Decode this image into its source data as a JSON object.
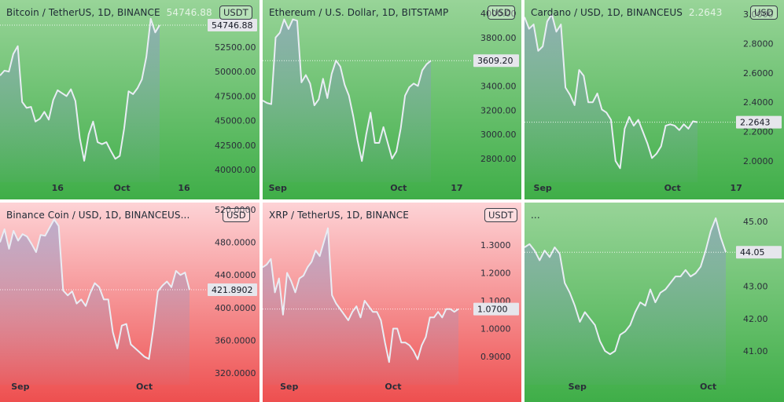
{
  "colors": {
    "green_top": "#98d498",
    "green_bottom": "#3fae48",
    "red_top": "#fdd3d6",
    "red_bottom": "#ee4f4f",
    "line": "#e9edf4",
    "area": "#8a96c8",
    "price_tag_bg": "#e6e6ec"
  },
  "chart_data": [
    {
      "type": "area",
      "title": "Bitcoin / TetherUS, 1D, BINANCE",
      "title_value": "54746.88",
      "unit": "USDT",
      "theme": "green",
      "y_ticks": [
        "52500.00",
        "50000.00",
        "47500.00",
        "45000.00",
        "42500.00",
        "40000.00"
      ],
      "y_tick_values": [
        52500,
        50000,
        47500,
        45000,
        42500,
        40000
      ],
      "x_ticks": [
        "16",
        "Oct",
        "16"
      ],
      "x_tick_index": [
        13.0,
        27.5,
        41.5
      ],
      "last_price": "54746.88",
      "last_price_value": 54746.88,
      "values": [
        49600,
        50100,
        50000,
        51800,
        52600,
        46900,
        46300,
        46400,
        44900,
        45200,
        45900,
        45100,
        47100,
        48100,
        47800,
        47500,
        48200,
        47000,
        43200,
        40900,
        43600,
        44900,
        42800,
        42600,
        42800,
        41900,
        41100,
        41400,
        44200,
        48000,
        47700,
        48300,
        49200,
        51500,
        55400,
        54000,
        54746.88
      ]
    },
    {
      "type": "area",
      "title": "Ethereum / U.S. Dollar, 1D, BITSTAMP",
      "title_value": "",
      "unit": "USD",
      "theme": "green",
      "y_ticks": [
        "4000.00",
        "3800.00",
        "3600.00",
        "3400.00",
        "3200.00",
        "3000.00",
        "2800.00"
      ],
      "y_tick_values": [
        4000,
        3800,
        3600,
        3400,
        3200,
        3000,
        2800
      ],
      "x_ticks": [
        "Sep",
        "Oct",
        "17"
      ],
      "x_tick_index": [
        3.5,
        31.5,
        45.0
      ],
      "last_price": "3609.20",
      "last_price_value": 3609.2,
      "values": [
        3280,
        3260,
        3250,
        3800,
        3840,
        3950,
        3870,
        3950,
        3940,
        3430,
        3490,
        3420,
        3240,
        3290,
        3460,
        3300,
        3500,
        3610,
        3560,
        3410,
        3320,
        3150,
        2950,
        2780,
        3000,
        3180,
        2930,
        2930,
        3060,
        2930,
        2800,
        2860,
        3050,
        3320,
        3390,
        3420,
        3400,
        3530,
        3580,
        3609.2
      ]
    },
    {
      "type": "area",
      "title": "Cardano / USD, 1D, BINANCEUS",
      "title_value": "2.2643",
      "unit": "USD",
      "theme": "green",
      "y_ticks": [
        "3.0000",
        "2.8000",
        "2.6000",
        "2.4000",
        "2.2000",
        "2.0000"
      ],
      "y_tick_values": [
        3.0,
        2.8,
        2.6,
        2.4,
        2.2,
        2.0
      ],
      "x_ticks": [
        "Sep",
        "Oct",
        "17"
      ],
      "x_tick_index": [
        4.0,
        32.5,
        46.5
      ],
      "last_price": "2.2643",
      "last_price_value": 2.2643,
      "values": [
        2.98,
        2.9,
        2.93,
        2.75,
        2.78,
        2.95,
        3.0,
        2.88,
        2.93,
        2.5,
        2.45,
        2.38,
        2.62,
        2.58,
        2.4,
        2.4,
        2.46,
        2.35,
        2.33,
        2.28,
        2.0,
        1.95,
        2.22,
        2.3,
        2.24,
        2.28,
        2.2,
        2.12,
        2.02,
        2.05,
        2.1,
        2.24,
        2.25,
        2.24,
        2.21,
        2.25,
        2.22,
        2.27,
        2.2643
      ]
    },
    {
      "type": "area",
      "title": "Binance Coin / USD, 1D, BINANCEUS...",
      "title_value": "",
      "unit": "USD",
      "theme": "red",
      "y_ticks": [
        "520.0000",
        "480.0000",
        "440.0000",
        "400.0000",
        "360.0000",
        "320.0000"
      ],
      "y_tick_values": [
        520,
        480,
        440,
        400,
        360,
        320
      ],
      "x_ticks": [
        "Sep",
        "Oct"
      ],
      "x_tick_index": [
        4.5,
        32.0
      ],
      "last_price": "421.8902",
      "last_price_value": 421.8902,
      "values": [
        480,
        496,
        472,
        494,
        482,
        490,
        487,
        478,
        468,
        489,
        488,
        498,
        508,
        500,
        421,
        415,
        420,
        405,
        410,
        402,
        418,
        430,
        425,
        410,
        410,
        370,
        350,
        378,
        380,
        355,
        350,
        345,
        340,
        337,
        375,
        420,
        427,
        432,
        425,
        445,
        440,
        443,
        421.8902
      ]
    },
    {
      "type": "area",
      "title": "XRP / TetherUS, 1D, BINANCE",
      "title_value": "",
      "unit": "USDT",
      "theme": "red",
      "y_ticks": [
        "1.3000",
        "1.2000",
        "1.1000",
        "1.0000",
        "0.9000"
      ],
      "y_tick_values": [
        1.3,
        1.2,
        1.1,
        1.0,
        0.9
      ],
      "x_ticks": [
        "Sep",
        "Oct"
      ],
      "x_tick_index": [
        6.5,
        32.0
      ],
      "last_price": "1.0700",
      "last_price_value": 1.07,
      "values": [
        1.22,
        1.23,
        1.25,
        1.13,
        1.18,
        1.05,
        1.2,
        1.17,
        1.13,
        1.18,
        1.19,
        1.22,
        1.24,
        1.28,
        1.26,
        1.31,
        1.36,
        1.12,
        1.09,
        1.07,
        1.05,
        1.03,
        1.06,
        1.08,
        1.04,
        1.1,
        1.08,
        1.06,
        1.06,
        1.03,
        0.95,
        0.88,
        1.0,
        1.0,
        0.95,
        0.95,
        0.94,
        0.92,
        0.89,
        0.94,
        0.97,
        1.04,
        1.04,
        1.06,
        1.04,
        1.07,
        1.07,
        1.06,
        1.07
      ]
    },
    {
      "type": "area",
      "title": "...",
      "title_value": "",
      "unit": "",
      "theme": "green",
      "y_ticks": [
        "45.00",
        "44.00",
        "43.00",
        "42.00",
        "41.00"
      ],
      "y_tick_values": [
        45,
        44,
        43,
        42,
        41
      ],
      "x_ticks": [
        "Sep",
        "Oct"
      ],
      "x_tick_index": [
        10.5,
        36.5
      ],
      "last_price": "44.05",
      "last_price_value": 44.05,
      "values": [
        44.2,
        44.3,
        44.1,
        43.8,
        44.1,
        43.9,
        44.2,
        44.0,
        43.1,
        42.8,
        42.4,
        41.9,
        42.2,
        42.0,
        41.8,
        41.3,
        41.0,
        40.9,
        41.0,
        41.5,
        41.6,
        41.8,
        42.2,
        42.5,
        42.4,
        42.9,
        42.5,
        42.8,
        42.9,
        43.1,
        43.3,
        43.3,
        43.5,
        43.3,
        43.4,
        43.6,
        44.1,
        44.7,
        45.1,
        44.5,
        44.05
      ]
    }
  ]
}
